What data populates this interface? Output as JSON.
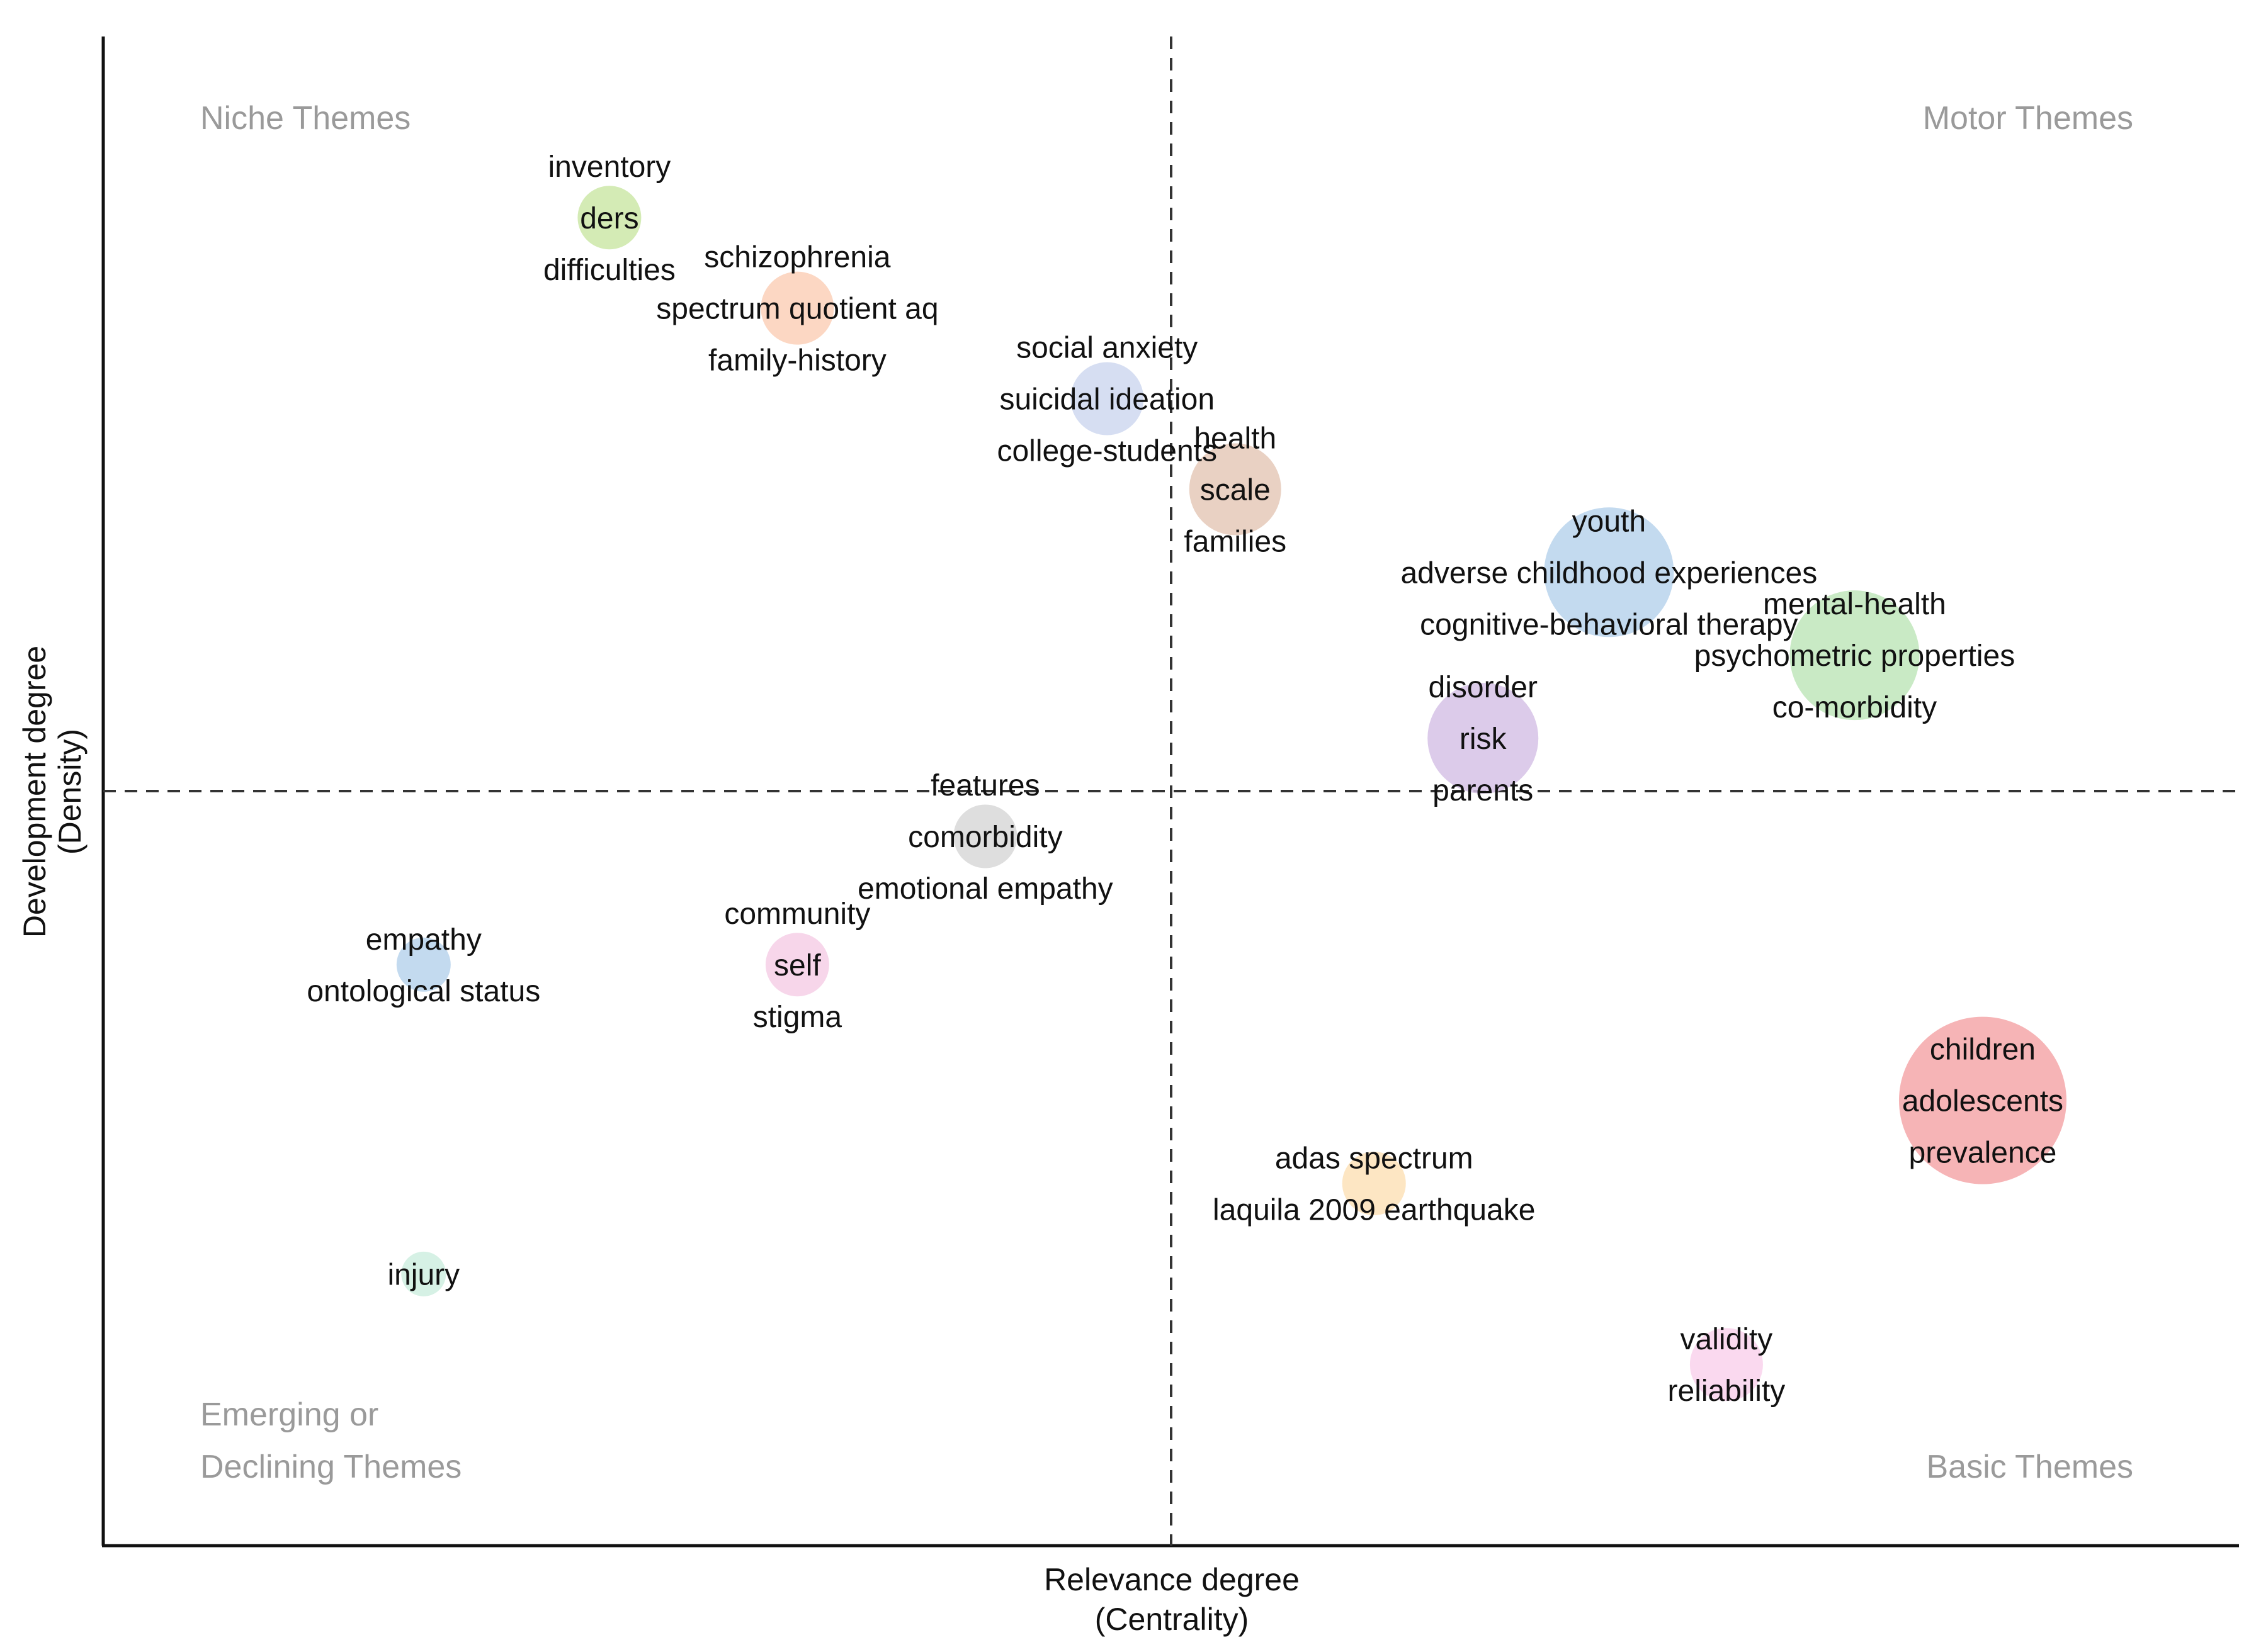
{
  "chart_data": {
    "type": "scatter",
    "subtype": "thematic-map-bubble",
    "title": "",
    "xlabel": [
      "Relevance degree",
      "(Centrality)"
    ],
    "ylabel": [
      "Development degree",
      "(Density)"
    ],
    "xlim": [
      0,
      100
    ],
    "ylim": [
      0,
      100
    ],
    "grid": false,
    "reference_lines": {
      "x": 50,
      "y": 50,
      "style": "dashed"
    },
    "quadrants": {
      "top_left": [
        "Niche Themes"
      ],
      "top_right": [
        "Motor Themes"
      ],
      "bottom_left": [
        "Emerging or",
        "Declining Themes"
      ],
      "bottom_right": [
        "Basic Themes"
      ]
    },
    "clusters": [
      {
        "terms": [
          "inventory",
          "ders",
          "difficulties"
        ],
        "x": 23.7,
        "y": 88.0,
        "size": 3,
        "color": "#cde8a8"
      },
      {
        "terms": [
          "schizophrenia",
          "spectrum quotient aq",
          "family-history"
        ],
        "x": 32.5,
        "y": 82.0,
        "size": 4,
        "color": "#fbd0b8"
      },
      {
        "terms": [
          "social anxiety",
          "suicidal ideation",
          "college-students"
        ],
        "x": 47.0,
        "y": 76.0,
        "size": 4,
        "color": "#cfd8f0"
      },
      {
        "terms": [
          "health",
          "scale",
          "families"
        ],
        "x": 53.0,
        "y": 70.0,
        "size": 6,
        "color": "#e5c9b8"
      },
      {
        "terms": [
          "youth",
          "adverse childhood experiences",
          "cognitive-behavioral therapy"
        ],
        "x": 70.5,
        "y": 64.5,
        "size": 10,
        "color": "#b9d4ec"
      },
      {
        "terms": [
          "mental-health",
          "psychometric properties",
          "co-morbidity"
        ],
        "x": 82.0,
        "y": 59.0,
        "size": 10,
        "color": "#bfe6bb"
      },
      {
        "terms": [
          "disorder",
          "risk",
          "parents"
        ],
        "x": 64.6,
        "y": 53.5,
        "size": 8,
        "color": "#d6c2e6"
      },
      {
        "terms": [
          "features",
          "comorbidity",
          "emotional empathy"
        ],
        "x": 41.3,
        "y": 47.0,
        "size": 3,
        "color": "#d8d8d8"
      },
      {
        "terms": [
          "community",
          "self",
          "stigma"
        ],
        "x": 32.5,
        "y": 38.5,
        "size": 3,
        "color": "#f6cfe6"
      },
      {
        "terms": [
          "empathy",
          "ontological status"
        ],
        "x": 15.0,
        "y": 38.5,
        "size": 2,
        "color": "#b9d4ec"
      },
      {
        "terms": [
          "children",
          "adolescents",
          "prevalence"
        ],
        "x": 88.0,
        "y": 29.5,
        "size": 14,
        "color": "#f4a7a9"
      },
      {
        "terms": [
          "adas spectrum",
          "laquila 2009 earthquake"
        ],
        "x": 59.5,
        "y": 24.0,
        "size": 3,
        "color": "#fde2b8"
      },
      {
        "terms": [
          "injury"
        ],
        "x": 15.0,
        "y": 18.0,
        "size": 1,
        "color": "#cfeee0"
      },
      {
        "terms": [
          "validity",
          "reliability"
        ],
        "x": 76.0,
        "y": 12.0,
        "size": 4,
        "color": "#f9d2ec"
      }
    ]
  }
}
